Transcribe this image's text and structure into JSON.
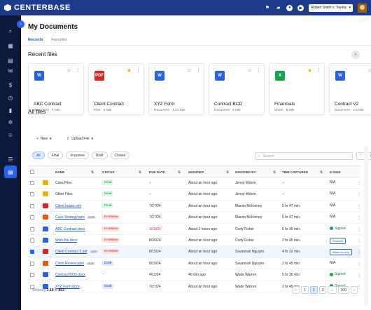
{
  "app": {
    "name": "CENTERBASE"
  },
  "user": {
    "name": "Robert Smith v. Toyota"
  },
  "sidebar_items": [
    "search-icon",
    "dashboard-icon",
    "calendar-icon",
    "mail-icon",
    "billing-icon",
    "clock-icon",
    "chart-icon",
    "settings-icon",
    "contacts-icon",
    "tasks-icon",
    "documents-icon"
  ],
  "page": {
    "title": "My Documents"
  },
  "tabs": [
    "Recents",
    "Favorites"
  ],
  "recent": {
    "title": "Recent files",
    "cards": [
      {
        "name": "ABC Contract",
        "meta": "Document · 5 MB",
        "icon": "word",
        "starred": false
      },
      {
        "name": "Client Contract",
        "meta": "PDF · 5 MB",
        "icon": "pdf",
        "starred": true
      },
      {
        "name": "XYZ Form",
        "meta": "Document · 1.23 MB",
        "icon": "word",
        "starred": false
      },
      {
        "name": "Contract BCD",
        "meta": "Document · 5 MB",
        "icon": "word",
        "starred": false
      },
      {
        "name": "Financials",
        "meta": "Sheet · 5 MB",
        "icon": "sheet",
        "starred": true
      },
      {
        "name": "Contract V2",
        "meta": "Document · 2.8 MB",
        "icon": "word",
        "starred": false
      }
    ]
  },
  "all_files": {
    "title": "All files",
    "new_label": "New",
    "upload_label": "Upload File",
    "filters": [
      "All",
      "Final",
      "In-review",
      "Draft",
      "Closed"
    ],
    "search_placeholder": "Search",
    "columns": {
      "name": "NAME",
      "status": "STATUS",
      "due": "DUE DATE",
      "modified": "MODIFIED",
      "by": "MODIFIED BY",
      "time": "TIME CAPTURED",
      "esign": "E-SIGN"
    },
    "rows": [
      {
        "icon": "folder",
        "name": "Case Files",
        "link": false,
        "ocr": false,
        "status": "Final",
        "due": "--",
        "modified": "About an hour ago",
        "by": "Jenny Wilson",
        "time": "--",
        "esign": "N/A",
        "esign_type": "text",
        "selected": false,
        "due_red": false
      },
      {
        "icon": "folder",
        "name": "Other Files",
        "link": false,
        "ocr": false,
        "status": "Final",
        "due": "--",
        "modified": "About an hour ago",
        "by": "Jenny Wilson",
        "time": "--",
        "esign": "N/A",
        "esign_type": "text",
        "selected": false,
        "due_red": false
      },
      {
        "icon": "pdf",
        "name": "Client Intake.xml",
        "link": true,
        "ocr": false,
        "status": "Final",
        "due": "7/27/24",
        "modified": "About an hour ago",
        "by": "Marvin McKinney",
        "time": "5 hr 47 min",
        "esign": "N/A",
        "esign_type": "text",
        "selected": false,
        "due_red": false
      },
      {
        "icon": "ppt",
        "name": "Case Strategy.pptx",
        "link": true,
        "ocr": true,
        "status": "In-review",
        "due": "7/27/24",
        "modified": "About an hour ago",
        "by": "Marvin McKinney",
        "time": "5 hr 47 min",
        "esign": "N/A",
        "esign_type": "text",
        "selected": false,
        "due_red": false
      },
      {
        "icon": "word",
        "name": "ABC Contract.docx",
        "link": true,
        "ocr": false,
        "status": "In-review",
        "due": "1/15/24",
        "modified": "About 2 hours ago",
        "by": "Cody Fisher",
        "time": "5 hr 30 min",
        "esign": "Signed",
        "esign_type": "signed",
        "selected": false,
        "due_red": true
      },
      {
        "icon": "word",
        "name": "Work file.docx",
        "link": true,
        "ocr": false,
        "status": "In-review",
        "due": "8/30/24",
        "modified": "About an hour ago",
        "by": "Cody Fisher",
        "time": "2 hr 45 min",
        "esign": "Request",
        "esign_type": "button",
        "selected": false,
        "due_red": false
      },
      {
        "icon": "pdf",
        "name": "Client Contract 2.pdf",
        "link": true,
        "ocr": true,
        "status": "In-review",
        "due": "8/15/24",
        "modified": "About an hour ago",
        "by": "Savannah Nguyen",
        "time": "4 hr 22 min",
        "esign": "Added to env",
        "esign_type": "button",
        "selected": true,
        "due_red": false
      },
      {
        "icon": "ppt",
        "name": "Client Review.pptx",
        "link": true,
        "ocr": true,
        "status": "Draft",
        "due": "8/15/24",
        "modified": "About an hour ago",
        "by": "Savannah Nguyen",
        "time": "2 hr 45 min",
        "esign": "N/A",
        "esign_type": "text",
        "selected": false,
        "due_red": false
      },
      {
        "icon": "word",
        "name": "Contract BCD.docx",
        "link": true,
        "ocr": false,
        "status": "--",
        "due": "4/11/24",
        "modified": "40 min ago",
        "by": "Wade Warren",
        "time": "5 hr 30 min",
        "esign": "Signed",
        "esign_type": "signed",
        "selected": false,
        "due_red": false
      },
      {
        "icon": "word",
        "name": "XYZ Form.docx",
        "link": true,
        "ocr": false,
        "status": "Draft",
        "due": "7/27/24",
        "modified": "About an hour ago",
        "by": "Wade Warren",
        "time": "2 hr 45 min",
        "esign": "Signed",
        "esign_type": "signed",
        "selected": false,
        "due_red": false
      }
    ],
    "footer": {
      "prefix": "Showing ",
      "range": "1-10",
      "of": " of ",
      "total": "853"
    },
    "pages": [
      "‹",
      "1",
      "2",
      "3",
      "...",
      "100",
      "›"
    ]
  }
}
